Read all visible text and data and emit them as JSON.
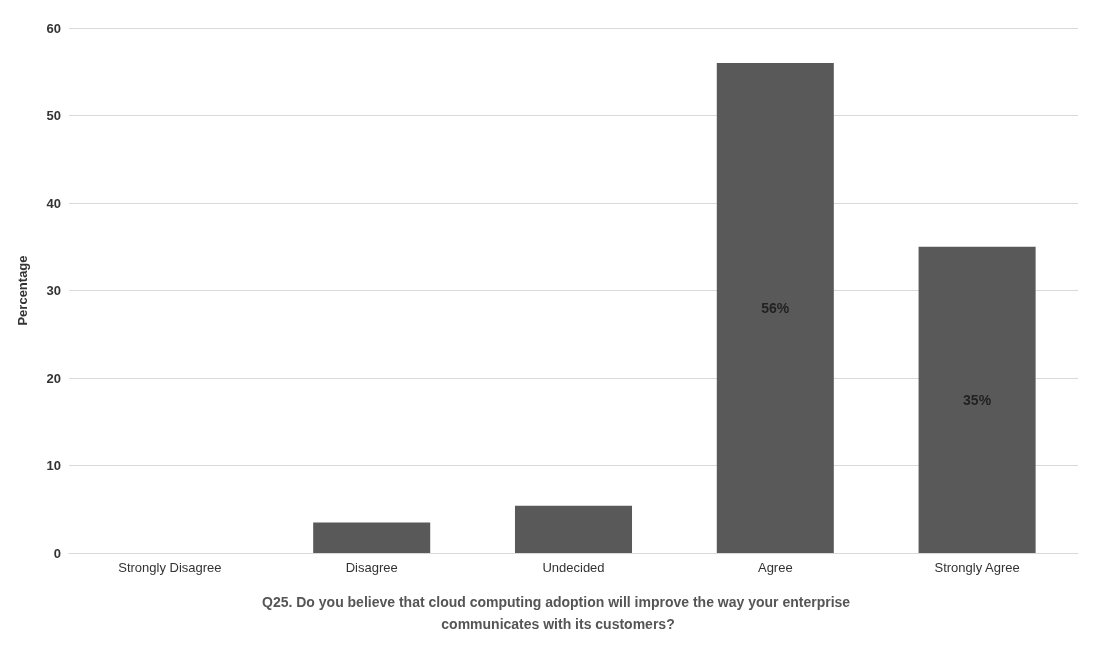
{
  "chart_data": {
    "type": "bar",
    "xlabel": "Q25. Do you believe that cloud computing adoption will improve the way your enterprise communicates with its customers?",
    "ylabel": "Percentage",
    "categories": [
      "Strongly Disagree",
      "Disagree",
      "Undecided",
      "Agree",
      "Strongly Agree"
    ],
    "values": [
      0,
      3.5,
      5.4,
      56,
      35
    ],
    "value_labels": [
      null,
      null,
      null,
      "56%",
      "35%"
    ],
    "color": "#595959",
    "ylim": [
      0,
      60
    ],
    "yticks": [
      0,
      10,
      20,
      30,
      40,
      50,
      60
    ],
    "grid": "y"
  }
}
